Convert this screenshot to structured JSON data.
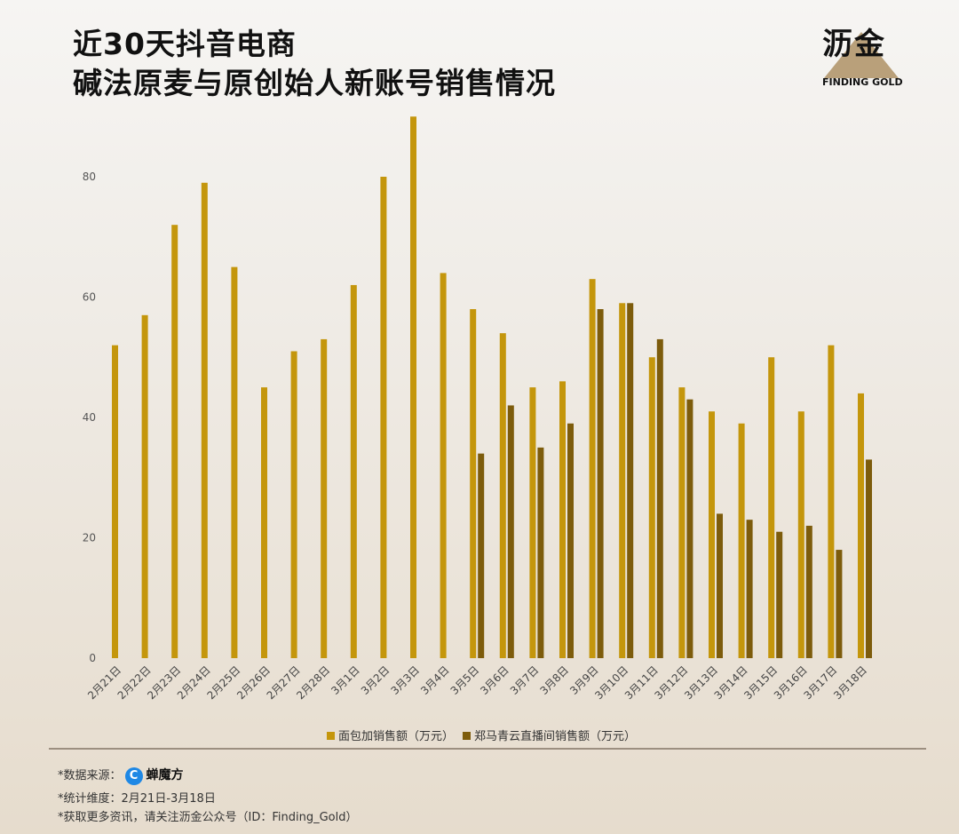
{
  "header": {
    "title_line1": "近30天抖音电商",
    "title_line2": "碱法原麦与原创始人新账号销售情况"
  },
  "logo": {
    "cn": "沥金",
    "en": "FINDING GOLD"
  },
  "chart_data": {
    "type": "bar",
    "title": "近30天抖音电商 碱法原麦与原创始人新账号销售情况",
    "categories": [
      "2月21日",
      "2月22日",
      "2月23日",
      "2月24日",
      "2月25日",
      "2月26日",
      "2月27日",
      "2月28日",
      "3月1日",
      "3月2日",
      "3月3日",
      "3月4日",
      "3月5日",
      "3月6日",
      "3月7日",
      "3月8日",
      "3月9日",
      "3月10日",
      "3月11日",
      "3月12日",
      "3月13日",
      "3月14日",
      "3月15日",
      "3月16日",
      "3月17日",
      "3月18日"
    ],
    "series": [
      {
        "name": "面包加销售额（万元）",
        "color": "#c4960c",
        "values": [
          52,
          57,
          72,
          79,
          65,
          45,
          51,
          53,
          62,
          80,
          90,
          64,
          58,
          54,
          45,
          46,
          63,
          59,
          50,
          45,
          41,
          39,
          50,
          41,
          52,
          44
        ]
      },
      {
        "name": "郑马青云直播间销售额（万元）",
        "color": "#7d5c0c",
        "values": [
          null,
          null,
          null,
          null,
          null,
          null,
          null,
          null,
          null,
          null,
          null,
          null,
          34,
          42,
          35,
          39,
          58,
          59,
          53,
          43,
          24,
          23,
          21,
          22,
          18,
          33
        ]
      }
    ],
    "yticks": [
      0,
      20,
      40,
      60,
      80
    ],
    "ylim": [
      0,
      92
    ],
    "xlabel": "",
    "ylabel": "",
    "grid": false,
    "legend": "bottom"
  },
  "footer": {
    "source_label": "*数据来源：",
    "source_name": "蝉魔方",
    "source_logo": "C",
    "period": "*统计维度：2月21日-3月18日",
    "more": "*获取更多资讯，请关注沥金公众号（ID：Finding_Gold）"
  }
}
